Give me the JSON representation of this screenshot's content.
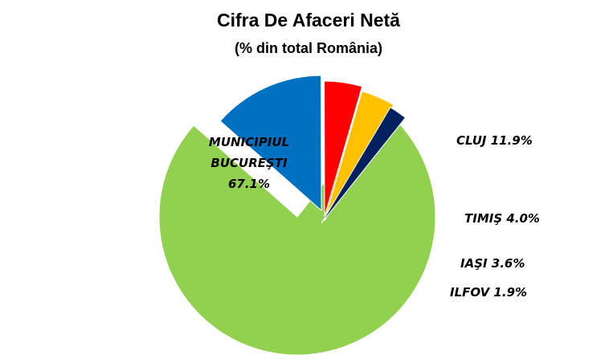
{
  "chart_data": {
    "type": "pie",
    "title": "Cifra De Afaceri Netă",
    "subtitle": "(% din total România)",
    "slices": [
      {
        "label_lines": [
          "MUNICIPIUL",
          "BUCUREŞTI",
          "67.1%"
        ],
        "name": "MUNICIPIUL BUCUREŞTI",
        "value": 67.1,
        "color": "#92D050"
      },
      {
        "label_lines": [
          "CLUJ 11.9%"
        ],
        "name": "CLUJ",
        "value": 11.9,
        "color": "#0070C0"
      },
      {
        "label_lines": [
          "TIMIŞ 4.0%"
        ],
        "name": "TIMIŞ",
        "value": 4.0,
        "color": "#FF0000"
      },
      {
        "label_lines": [
          "IAŞI 3.6%"
        ],
        "name": "IAŞI",
        "value": 3.6,
        "color": "#FFC000"
      },
      {
        "label_lines": [
          "ILFOV 1.9%"
        ],
        "name": "ILFOV",
        "value": 1.9,
        "color": "#002060"
      }
    ],
    "legend": "none"
  }
}
